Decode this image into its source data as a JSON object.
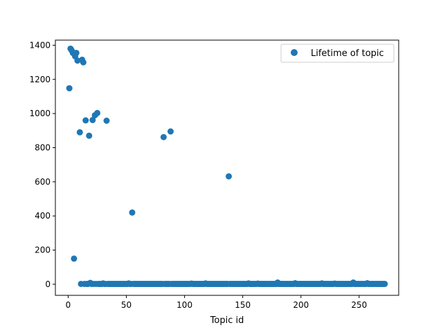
{
  "chart_data": {
    "type": "scatter",
    "title": "",
    "xlabel": "Topic id",
    "ylabel": "",
    "xlim": [
      -11,
      284
    ],
    "ylim": [
      -65,
      1430
    ],
    "xticks": [
      0,
      50,
      100,
      150,
      200,
      250
    ],
    "yticks": [
      0,
      200,
      400,
      600,
      800,
      1000,
      1200,
      1400
    ],
    "grid": false,
    "legend_position": "top-right",
    "marker_color": "#1f77b4",
    "series": [
      {
        "name": "Lifetime of topic",
        "highlights": {
          "x": [
            1,
            2,
            3,
            4,
            5,
            6,
            7,
            8,
            10,
            12,
            13,
            15,
            18,
            21,
            23,
            25,
            33,
            55,
            82,
            88,
            138
          ],
          "y": [
            1148,
            1380,
            1370,
            1355,
            150,
            1335,
            1355,
            1310,
            890,
            1315,
            1300,
            960,
            870,
            962,
            990,
            1003,
            958,
            420,
            862,
            895,
            632
          ]
        },
        "baseline": {
          "x_start": 10,
          "x_end": 272,
          "y": 2,
          "bumps": [
            [
              10,
              5
            ],
            [
              13,
              10
            ],
            [
              19,
              8
            ],
            [
              30,
              5
            ],
            [
              52,
              5
            ],
            [
              88,
              6
            ],
            [
              106,
              4
            ],
            [
              118,
              5
            ],
            [
              155,
              5
            ],
            [
              163,
              4
            ],
            [
              180,
              10
            ],
            [
              195,
              6
            ],
            [
              218,
              5
            ],
            [
              229,
              4
            ],
            [
              245,
              10
            ],
            [
              257,
              6
            ]
          ]
        }
      }
    ]
  }
}
